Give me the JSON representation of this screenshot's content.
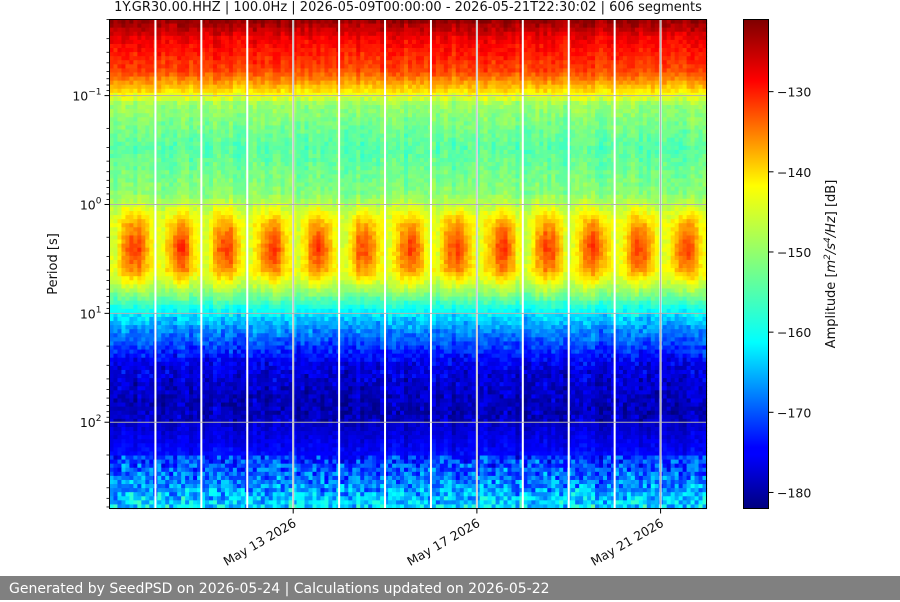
{
  "chart_data": {
    "type": "heatmap",
    "title": "1Y.GR30.00.HHZ | 100.0Hz | 2026-05-09T00:00:00 - 2026-05-21T22:30:02 | 606 segments",
    "ylabel": "Period [s]",
    "yscale": "log",
    "ylim": [
      0.02,
      620
    ],
    "y_inverted": true,
    "x_tick_labels": [
      {
        "label": "May 13 2026",
        "day": 4.0
      },
      {
        "label": "May 17 2026",
        "day": 8.0
      },
      {
        "label": "May 21 2026",
        "day": 12.0
      }
    ],
    "y_ticks": [
      {
        "base": "10",
        "exp": "−1",
        "value": 0.1
      },
      {
        "base": "10",
        "exp": "0",
        "value": 1
      },
      {
        "base": "10",
        "exp": "1",
        "value": 10
      },
      {
        "base": "10",
        "exp": "2",
        "value": 100
      }
    ],
    "colorbar": {
      "label_main": "Amplitude [",
      "label_m": "m",
      "label_2": "2",
      "label_s": "/s",
      "label_4": "4",
      "label_hz": "/Hz",
      "label_close": "] [dB]",
      "ticks": [
        "−130",
        "−140",
        "−150",
        "−160",
        "−170",
        "−180"
      ],
      "tick_values": [
        -130,
        -140,
        -150,
        -160,
        -170,
        -180
      ],
      "range": [
        -182,
        -121
      ],
      "colormap": "jet"
    },
    "grid": true,
    "gap_days": [
      1.0,
      2.0,
      3.0,
      4.0,
      5.0,
      6.0,
      7.0,
      8.0,
      9.0,
      10.0,
      11.0,
      12.0
    ],
    "profile_db": [
      {
        "period": 0.02,
        "db": -122
      },
      {
        "period": 0.03,
        "db": -128
      },
      {
        "period": 0.06,
        "db": -133
      },
      {
        "period": 0.09,
        "db": -142
      },
      {
        "period": 0.12,
        "db": -150
      },
      {
        "period": 0.3,
        "db": -154
      },
      {
        "period": 0.8,
        "db": -151
      },
      {
        "period": 1.5,
        "db": -142
      },
      {
        "period": 2.5,
        "db": -139
      },
      {
        "period": 4.0,
        "db": -141
      },
      {
        "period": 6.0,
        "db": -149
      },
      {
        "period": 9.0,
        "db": -158
      },
      {
        "period": 15,
        "db": -167
      },
      {
        "period": 30,
        "db": -176
      },
      {
        "period": 80,
        "db": -179
      },
      {
        "period": 200,
        "db": -174
      },
      {
        "period": 400,
        "db": -168
      },
      {
        "period": 620,
        "db": -163
      }
    ]
  },
  "footer": {
    "text": "Generated by SeedPSD on 2026-05-24 | Calculations updated on 2026-05-22"
  }
}
